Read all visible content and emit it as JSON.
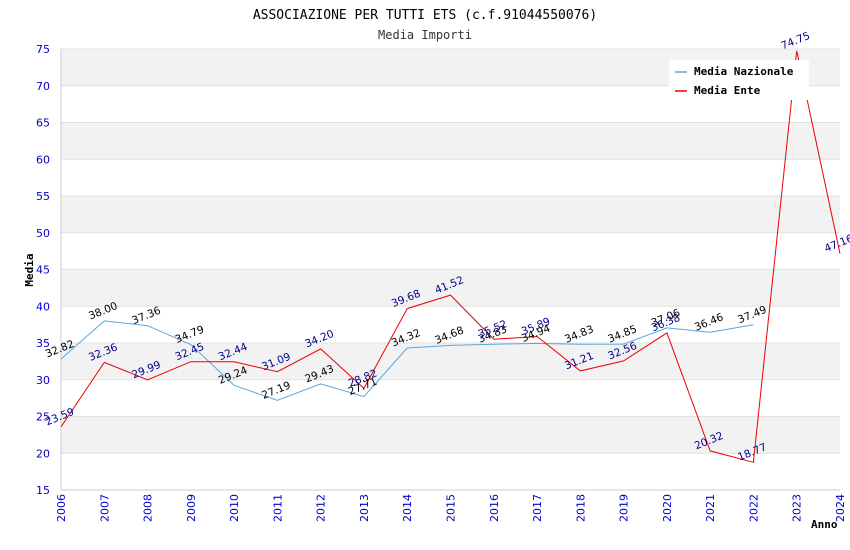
{
  "chart_data": {
    "type": "line",
    "title": "ASSOCIAZIONE PER TUTTI ETS (c.f.91044550076)",
    "subtitle": "Media Importi",
    "xlabel": "Anno",
    "ylabel": "Media",
    "x": [
      "2006",
      "2007",
      "2008",
      "2009",
      "2010",
      "2011",
      "2012",
      "2013",
      "2014",
      "2015",
      "2016",
      "2017",
      "2018",
      "2019",
      "2020",
      "2021",
      "2022",
      "2023",
      "2024"
    ],
    "ylim": [
      15,
      75
    ],
    "yticks": [
      "15",
      "20",
      "25",
      "30",
      "35",
      "40",
      "45",
      "50",
      "55",
      "60",
      "65",
      "70",
      "75"
    ],
    "grid": "horizontal bands",
    "legend_position": "top-right",
    "series": [
      {
        "name": "Media Nazionale",
        "color": "#5aa7e0",
        "label_color": "#000000",
        "values": [
          32.82,
          38.0,
          37.36,
          34.79,
          29.24,
          27.19,
          29.43,
          27.71,
          34.32,
          34.68,
          34.83,
          34.94,
          34.83,
          34.85,
          37.06,
          36.46,
          37.49,
          null,
          null
        ],
        "labels": [
          "32.82",
          "38.00",
          "37.36",
          "34.79",
          "29.24",
          "27.19",
          "29.43",
          "27.71",
          "34.32",
          "34.68",
          "34.83",
          "34.94",
          "34.83",
          "34.85",
          "37.06",
          "36.46",
          "37.49",
          "",
          ""
        ]
      },
      {
        "name": "Media Ente",
        "color": "#ee0000",
        "label_color": "#00008b",
        "values": [
          23.59,
          32.36,
          29.99,
          32.45,
          32.44,
          31.09,
          34.2,
          28.82,
          39.68,
          41.52,
          35.52,
          35.89,
          31.21,
          32.56,
          36.38,
          20.32,
          18.77,
          74.75,
          47.16
        ],
        "labels": [
          "23.59",
          "32.36",
          "29.99",
          "32.45",
          "32.44",
          "31.09",
          "34.20",
          "28.82",
          "39.68",
          "41.52",
          "35.52",
          "35.89",
          "31.21",
          "32.56",
          "36.38",
          "20.32",
          "18.77",
          "74.75",
          "47.16"
        ]
      }
    ]
  }
}
